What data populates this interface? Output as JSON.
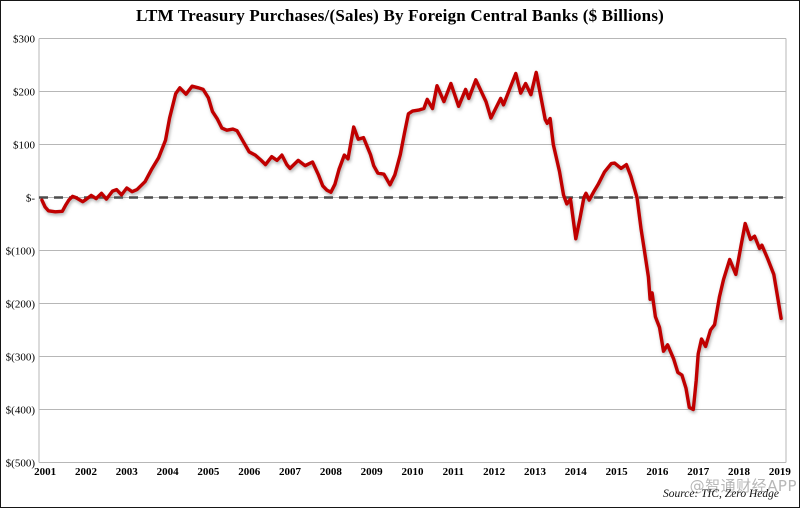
{
  "chart_data": {
    "type": "line",
    "title": "LTM Treasury Purchases/(Sales) By Foreign Central Banks ($ Billions)",
    "source_note": "Source: TIC, Zero Hedge",
    "watermark": "@智通财经APP",
    "xlabel": "",
    "ylabel": "",
    "grid": "horizontal",
    "legend": "none",
    "xlim": [
      2000.85,
      2019.15
    ],
    "ylim": [
      -500,
      300
    ],
    "x_ticks": [
      2001,
      2002,
      2003,
      2004,
      2005,
      2006,
      2007,
      2008,
      2009,
      2010,
      2011,
      2012,
      2013,
      2014,
      2015,
      2016,
      2017,
      2018,
      2019
    ],
    "y_ticks": [
      {
        "value": 300,
        "label": "$300"
      },
      {
        "value": 200,
        "label": "$200"
      },
      {
        "value": 100,
        "label": "$100"
      },
      {
        "value": 0,
        "label": "$-"
      },
      {
        "value": -100,
        "label": "$(100)"
      },
      {
        "value": -200,
        "label": "$(200)"
      },
      {
        "value": -300,
        "label": "$(300)"
      },
      {
        "value": -400,
        "label": "$(400)"
      },
      {
        "value": -500,
        "label": "$(500)"
      }
    ],
    "zero_line": {
      "style": "dashed",
      "color": "#4d4d4d"
    },
    "series": [
      {
        "name": "LTM Treasury Purchases/(Sales) by Foreign Central Banks",
        "color": "#c00000",
        "points": [
          [
            2000.92,
            -5
          ],
          [
            2001.0,
            -18
          ],
          [
            2001.08,
            -25
          ],
          [
            2001.25,
            -27
          ],
          [
            2001.42,
            -26
          ],
          [
            2001.5,
            -15
          ],
          [
            2001.58,
            -5
          ],
          [
            2001.67,
            2
          ],
          [
            2001.75,
            0
          ],
          [
            2001.92,
            -8
          ],
          [
            2002.0,
            -4
          ],
          [
            2002.13,
            4
          ],
          [
            2002.25,
            -2
          ],
          [
            2002.38,
            8
          ],
          [
            2002.5,
            -3
          ],
          [
            2002.65,
            12
          ],
          [
            2002.75,
            15
          ],
          [
            2002.87,
            5
          ],
          [
            2003.0,
            18
          ],
          [
            2003.13,
            11
          ],
          [
            2003.25,
            15
          ],
          [
            2003.45,
            30
          ],
          [
            2003.6,
            52
          ],
          [
            2003.78,
            75
          ],
          [
            2003.95,
            108
          ],
          [
            2004.05,
            150
          ],
          [
            2004.2,
            196
          ],
          [
            2004.3,
            207
          ],
          [
            2004.45,
            195
          ],
          [
            2004.6,
            210
          ],
          [
            2004.75,
            207
          ],
          [
            2004.87,
            204
          ],
          [
            2005.0,
            188
          ],
          [
            2005.1,
            162
          ],
          [
            2005.22,
            148
          ],
          [
            2005.33,
            131
          ],
          [
            2005.45,
            127
          ],
          [
            2005.6,
            129
          ],
          [
            2005.7,
            126
          ],
          [
            2005.85,
            106
          ],
          [
            2006.0,
            86
          ],
          [
            2006.15,
            80
          ],
          [
            2006.28,
            71
          ],
          [
            2006.4,
            62
          ],
          [
            2006.55,
            77
          ],
          [
            2006.68,
            70
          ],
          [
            2006.8,
            80
          ],
          [
            2006.92,
            62
          ],
          [
            2007.0,
            55
          ],
          [
            2007.2,
            70
          ],
          [
            2007.37,
            60
          ],
          [
            2007.55,
            67
          ],
          [
            2007.7,
            42
          ],
          [
            2007.8,
            22
          ],
          [
            2007.9,
            14
          ],
          [
            2008.0,
            10
          ],
          [
            2008.1,
            25
          ],
          [
            2008.2,
            53
          ],
          [
            2008.33,
            80
          ],
          [
            2008.42,
            73
          ],
          [
            2008.56,
            133
          ],
          [
            2008.67,
            110
          ],
          [
            2008.8,
            113
          ],
          [
            2008.97,
            81
          ],
          [
            2009.05,
            60
          ],
          [
            2009.15,
            46
          ],
          [
            2009.3,
            44
          ],
          [
            2009.45,
            24
          ],
          [
            2009.57,
            43
          ],
          [
            2009.7,
            81
          ],
          [
            2009.8,
            120
          ],
          [
            2009.9,
            158
          ],
          [
            2010.0,
            163
          ],
          [
            2010.15,
            165
          ],
          [
            2010.28,
            168
          ],
          [
            2010.36,
            185
          ],
          [
            2010.49,
            168
          ],
          [
            2010.6,
            211
          ],
          [
            2010.77,
            181
          ],
          [
            2010.94,
            215
          ],
          [
            2011.13,
            172
          ],
          [
            2011.3,
            204
          ],
          [
            2011.38,
            187
          ],
          [
            2011.55,
            222
          ],
          [
            2011.8,
            181
          ],
          [
            2011.92,
            150
          ],
          [
            2012.16,
            187
          ],
          [
            2012.23,
            175
          ],
          [
            2012.53,
            234
          ],
          [
            2012.65,
            197
          ],
          [
            2012.77,
            215
          ],
          [
            2012.9,
            194
          ],
          [
            2013.03,
            236
          ],
          [
            2013.25,
            147
          ],
          [
            2013.3,
            140
          ],
          [
            2013.37,
            149
          ],
          [
            2013.45,
            100
          ],
          [
            2013.6,
            49
          ],
          [
            2013.7,
            5
          ],
          [
            2013.78,
            -12
          ],
          [
            2013.87,
            -3
          ],
          [
            2014.0,
            -78
          ],
          [
            2014.1,
            -40
          ],
          [
            2014.2,
            0
          ],
          [
            2014.25,
            8
          ],
          [
            2014.33,
            -5
          ],
          [
            2014.45,
            12
          ],
          [
            2014.55,
            25
          ],
          [
            2014.7,
            48
          ],
          [
            2014.87,
            64
          ],
          [
            2014.95,
            65
          ],
          [
            2015.11,
            55
          ],
          [
            2015.24,
            62
          ],
          [
            2015.35,
            40
          ],
          [
            2015.5,
            0
          ],
          [
            2015.6,
            -60
          ],
          [
            2015.68,
            -100
          ],
          [
            2015.78,
            -150
          ],
          [
            2015.82,
            -192
          ],
          [
            2015.87,
            -180
          ],
          [
            2015.95,
            -225
          ],
          [
            2016.05,
            -245
          ],
          [
            2016.15,
            -290
          ],
          [
            2016.25,
            -278
          ],
          [
            2016.4,
            -305
          ],
          [
            2016.5,
            -330
          ],
          [
            2016.6,
            -335
          ],
          [
            2016.7,
            -360
          ],
          [
            2016.78,
            -396
          ],
          [
            2016.88,
            -400
          ],
          [
            2016.95,
            -345
          ],
          [
            2017.0,
            -295
          ],
          [
            2017.08,
            -267
          ],
          [
            2017.18,
            -281
          ],
          [
            2017.3,
            -250
          ],
          [
            2017.4,
            -240
          ],
          [
            2017.52,
            -187
          ],
          [
            2017.62,
            -155
          ],
          [
            2017.77,
            -117
          ],
          [
            2017.92,
            -145
          ],
          [
            2018.05,
            -90
          ],
          [
            2018.15,
            -49
          ],
          [
            2018.28,
            -79
          ],
          [
            2018.38,
            -73
          ],
          [
            2018.5,
            -96
          ],
          [
            2018.56,
            -90
          ],
          [
            2018.7,
            -115
          ],
          [
            2018.85,
            -145
          ],
          [
            2018.95,
            -190
          ],
          [
            2019.03,
            -228
          ]
        ]
      }
    ]
  }
}
